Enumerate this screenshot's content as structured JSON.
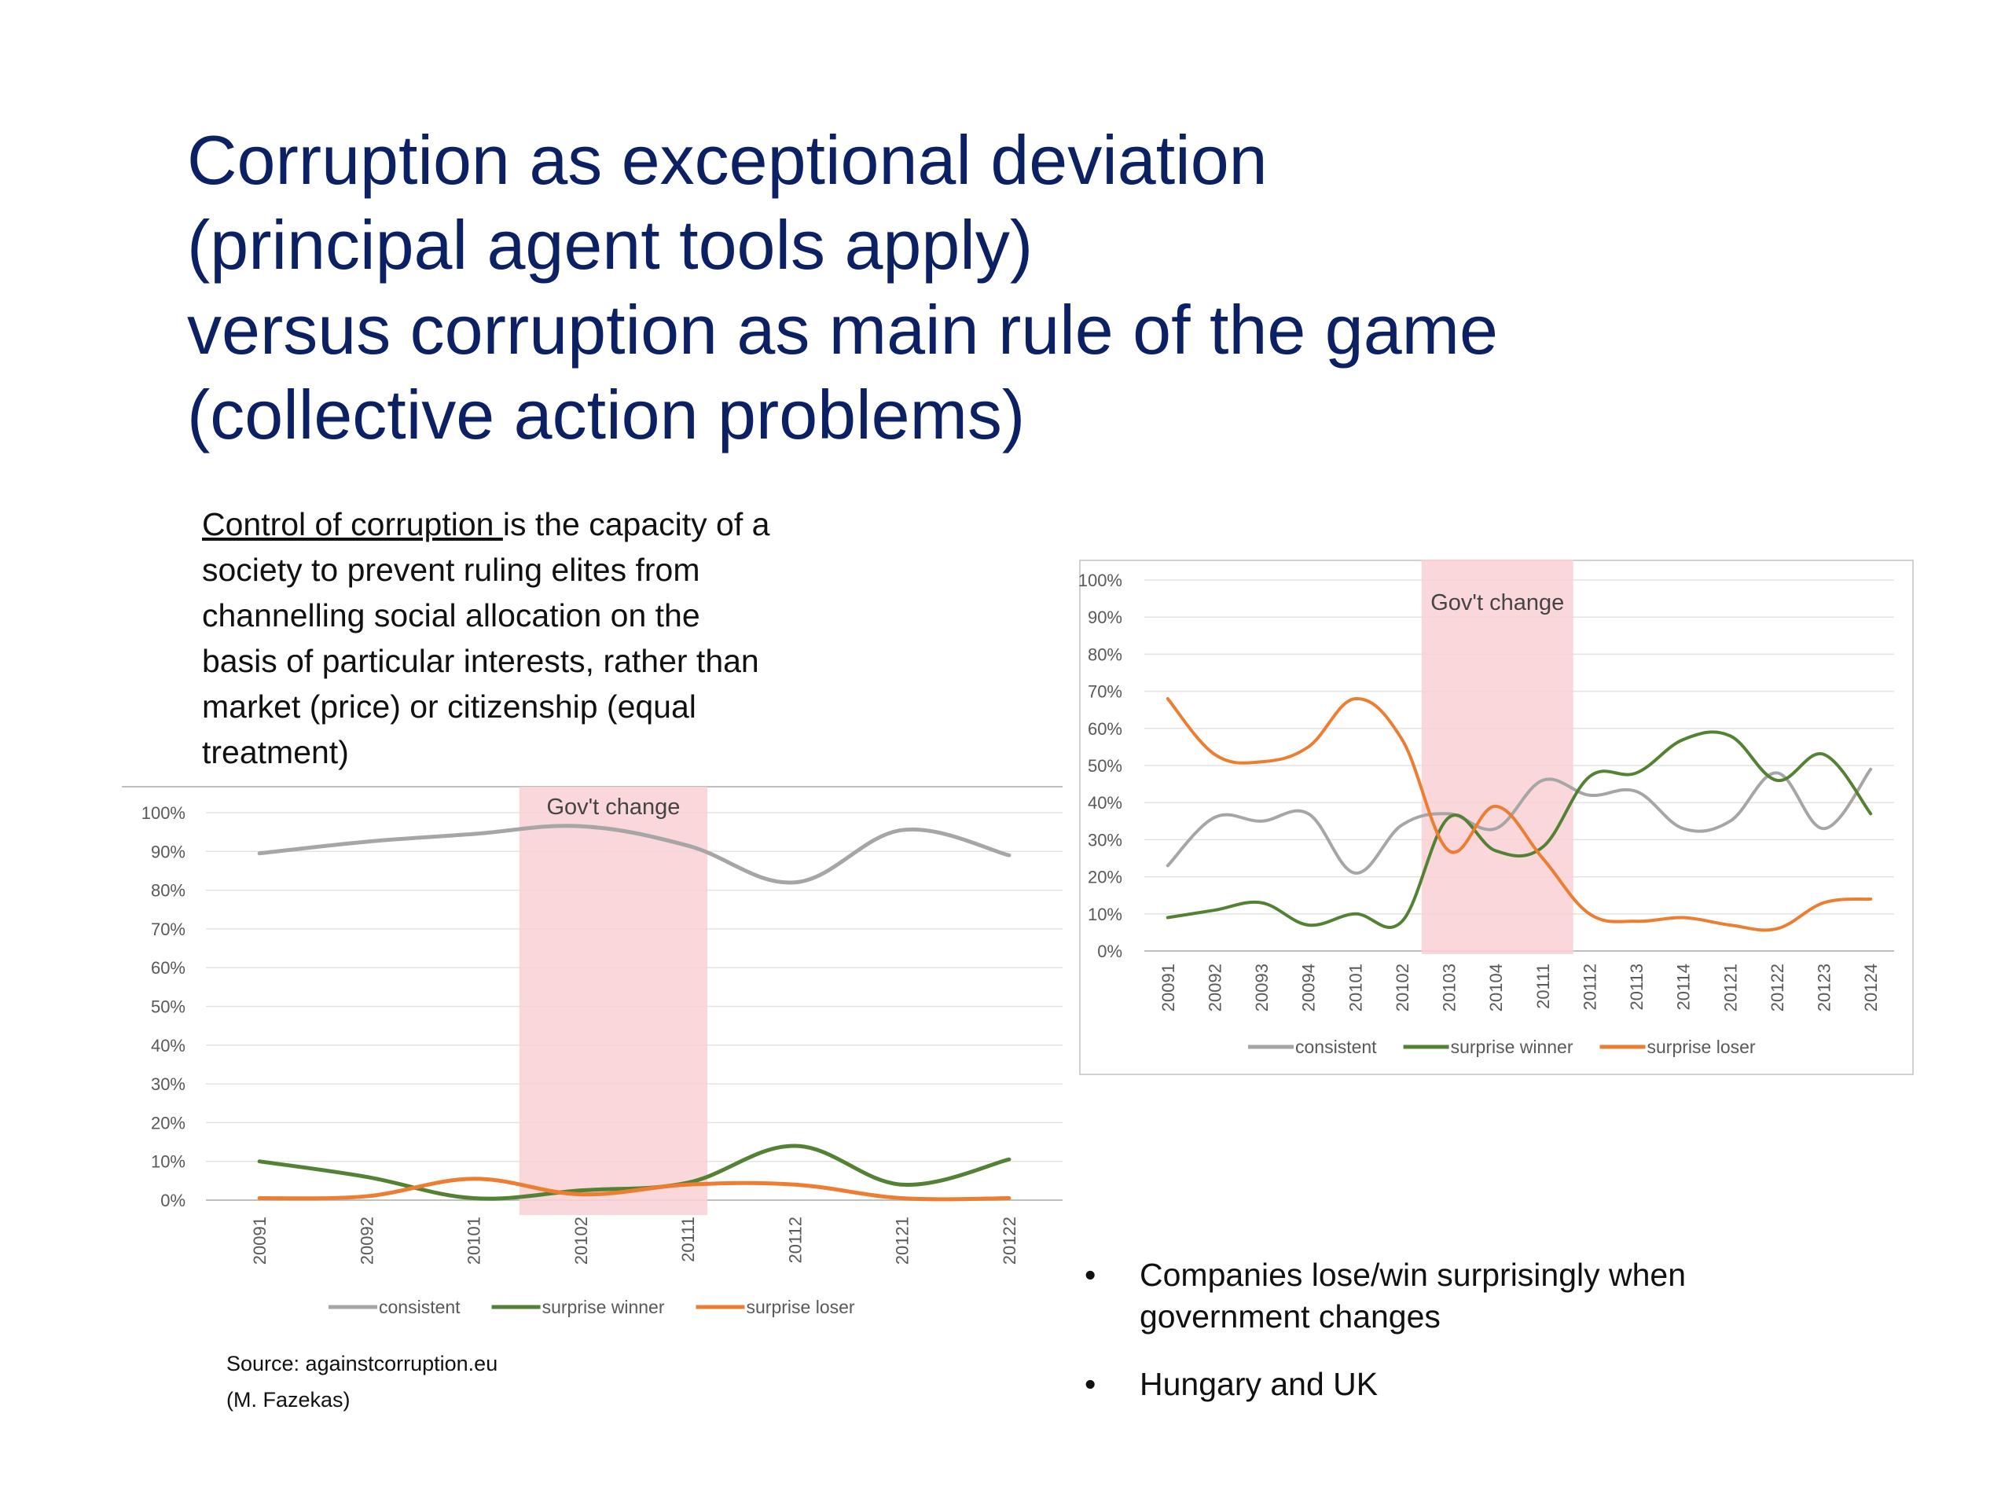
{
  "title_lines": [
    "Corruption as exceptional deviation",
    "(principal agent tools apply)",
    "versus corruption as main rule of the game",
    "(collective action problems)"
  ],
  "definition": {
    "term": "Control of corruption ",
    "lines": [
      "is the capacity of a",
      "society to prevent ruling elites from",
      "channelling social allocation on the",
      "basis of particular interests, rather than",
      "market (price) or citizenship (equal",
      "treatment)"
    ]
  },
  "source": {
    "line1": "Source: againstcorruption.eu",
    "line2": "(M. Fazekas)"
  },
  "bullets": [
    "Companies lose/win surprisingly when government changes",
    "Hungary and UK"
  ],
  "chart_data": [
    {
      "type": "line",
      "categories": [
        "20091",
        "20092",
        "20101",
        "20102",
        "20111",
        "20112",
        "20121",
        "20122"
      ],
      "ylim": [
        0,
        100
      ],
      "yticks": [
        "0%",
        "10%",
        "20%",
        "30%",
        "40%",
        "50%",
        "60%",
        "70%",
        "80%",
        "90%",
        "100%"
      ],
      "series": [
        {
          "name": "consistent",
          "color": "#a6a6a6",
          "values": [
            89.5,
            92.5,
            94.5,
            96.5,
            91.5,
            82,
            95.5,
            89
          ]
        },
        {
          "name": "surprise winner",
          "color": "#548235",
          "values": [
            10,
            6,
            0.5,
            2.5,
            4.5,
            14,
            4,
            10.5
          ]
        },
        {
          "name": "surprise loser",
          "color": "#ed7d31",
          "values": [
            0.5,
            1,
            5.5,
            1.5,
            4,
            4,
            0.5,
            0.5
          ]
        }
      ],
      "highlight": {
        "label": "Gov't change",
        "from_category": "20102",
        "color": "#f9d0d3"
      },
      "legend_position": "bottom",
      "grid": true
    },
    {
      "type": "line",
      "categories": [
        "20091",
        "20092",
        "20093",
        "20094",
        "20101",
        "20102",
        "20103",
        "20104",
        "20111",
        "20112",
        "20113",
        "20114",
        "20121",
        "20122",
        "20123",
        "20124"
      ],
      "ylim": [
        0,
        100
      ],
      "yticks": [
        "0%",
        "10%",
        "20%",
        "30%",
        "40%",
        "50%",
        "60%",
        "70%",
        "80%",
        "90%",
        "100%"
      ],
      "series": [
        {
          "name": "consistent",
          "color": "#a6a6a6",
          "values": [
            23,
            36,
            35,
            37,
            21,
            34,
            37,
            33,
            46,
            42,
            43,
            33,
            35,
            48,
            33,
            49
          ]
        },
        {
          "name": "surprise winner",
          "color": "#548235",
          "values": [
            9,
            11,
            13,
            7,
            10,
            8,
            36,
            27,
            28,
            47,
            48,
            57,
            58,
            46,
            53,
            37
          ]
        },
        {
          "name": "surprise loser",
          "color": "#ed7d31",
          "values": [
            68,
            53,
            51,
            55,
            68,
            57,
            27,
            39,
            25,
            10,
            8,
            9,
            7,
            6,
            13,
            14
          ]
        }
      ],
      "highlight": {
        "label": "Gov't change",
        "from_category": "20103",
        "color": "#f9d0d3"
      },
      "legend_position": "bottom",
      "grid": true
    }
  ]
}
